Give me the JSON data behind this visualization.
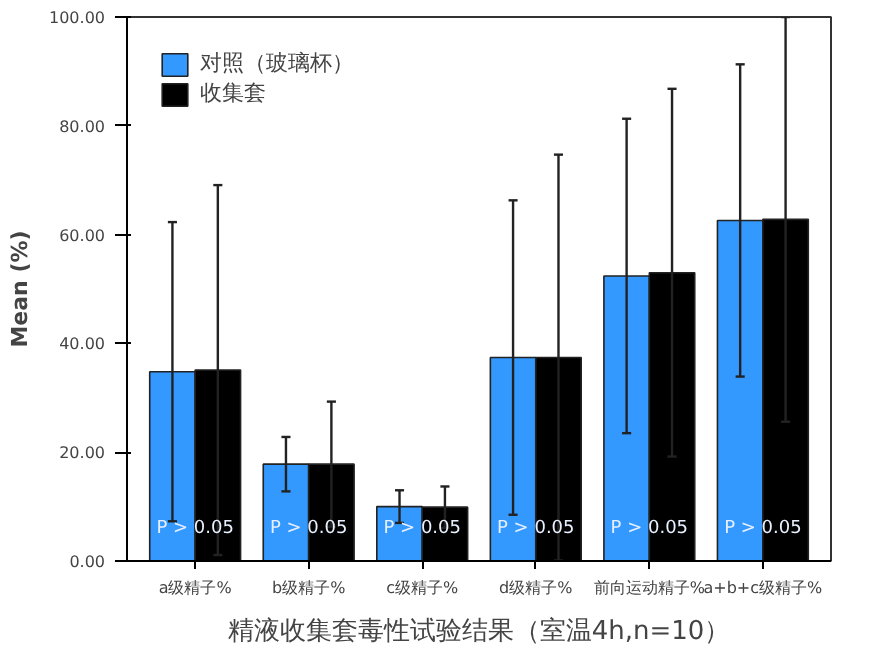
{
  "chart_data": {
    "type": "bar",
    "title": "精液收集套毒性试验结果（室温4h,n=10）",
    "ylabel": "Mean (%)",
    "categories": [
      "a级精子%",
      "b级精子%",
      "c级精子%",
      "d级精子%",
      "前向运动精子%",
      "a+b+c级精子%"
    ],
    "series": [
      {
        "name": "对照（玻璃杯）",
        "color": "#3399ff",
        "values": [
          34.8,
          17.8,
          10.0,
          37.4,
          52.4,
          62.6
        ],
        "errors": [
          27.5,
          5.0,
          3.0,
          28.9,
          28.9,
          28.7
        ]
      },
      {
        "name": "收集套",
        "color": "#000000",
        "values": [
          35.1,
          17.8,
          9.9,
          37.4,
          53.0,
          62.8
        ],
        "errors": [
          34.0,
          11.5,
          3.8,
          37.3,
          33.8,
          37.2
        ]
      }
    ],
    "ylim": [
      0,
      100
    ],
    "yticks": [
      {
        "value": 0,
        "label": "0.00"
      },
      {
        "value": 20,
        "label": "20.00"
      },
      {
        "value": 40,
        "label": "40.00"
      },
      {
        "value": 60,
        "label": "60.00"
      },
      {
        "value": 80,
        "label": "80.00"
      },
      {
        "value": 100,
        "label": "100.00"
      }
    ],
    "annotations": [
      {
        "text": "P > 0.05",
        "x": "a级精子%",
        "y": 4
      },
      {
        "text": "P > 0.05",
        "x": "b级精子%",
        "y": 4
      },
      {
        "text": "P > 0.05",
        "x": "c级精子%",
        "y": 4
      },
      {
        "text": "P > 0.05",
        "x": "d级精子%",
        "y": 4
      },
      {
        "text": "P > 0.05",
        "x": "前向运动精子%",
        "y": 4
      },
      {
        "text": "P > 0.05",
        "x": "a+b+c级精子%",
        "y": 4
      }
    ],
    "legend": "top left",
    "grid": false
  }
}
